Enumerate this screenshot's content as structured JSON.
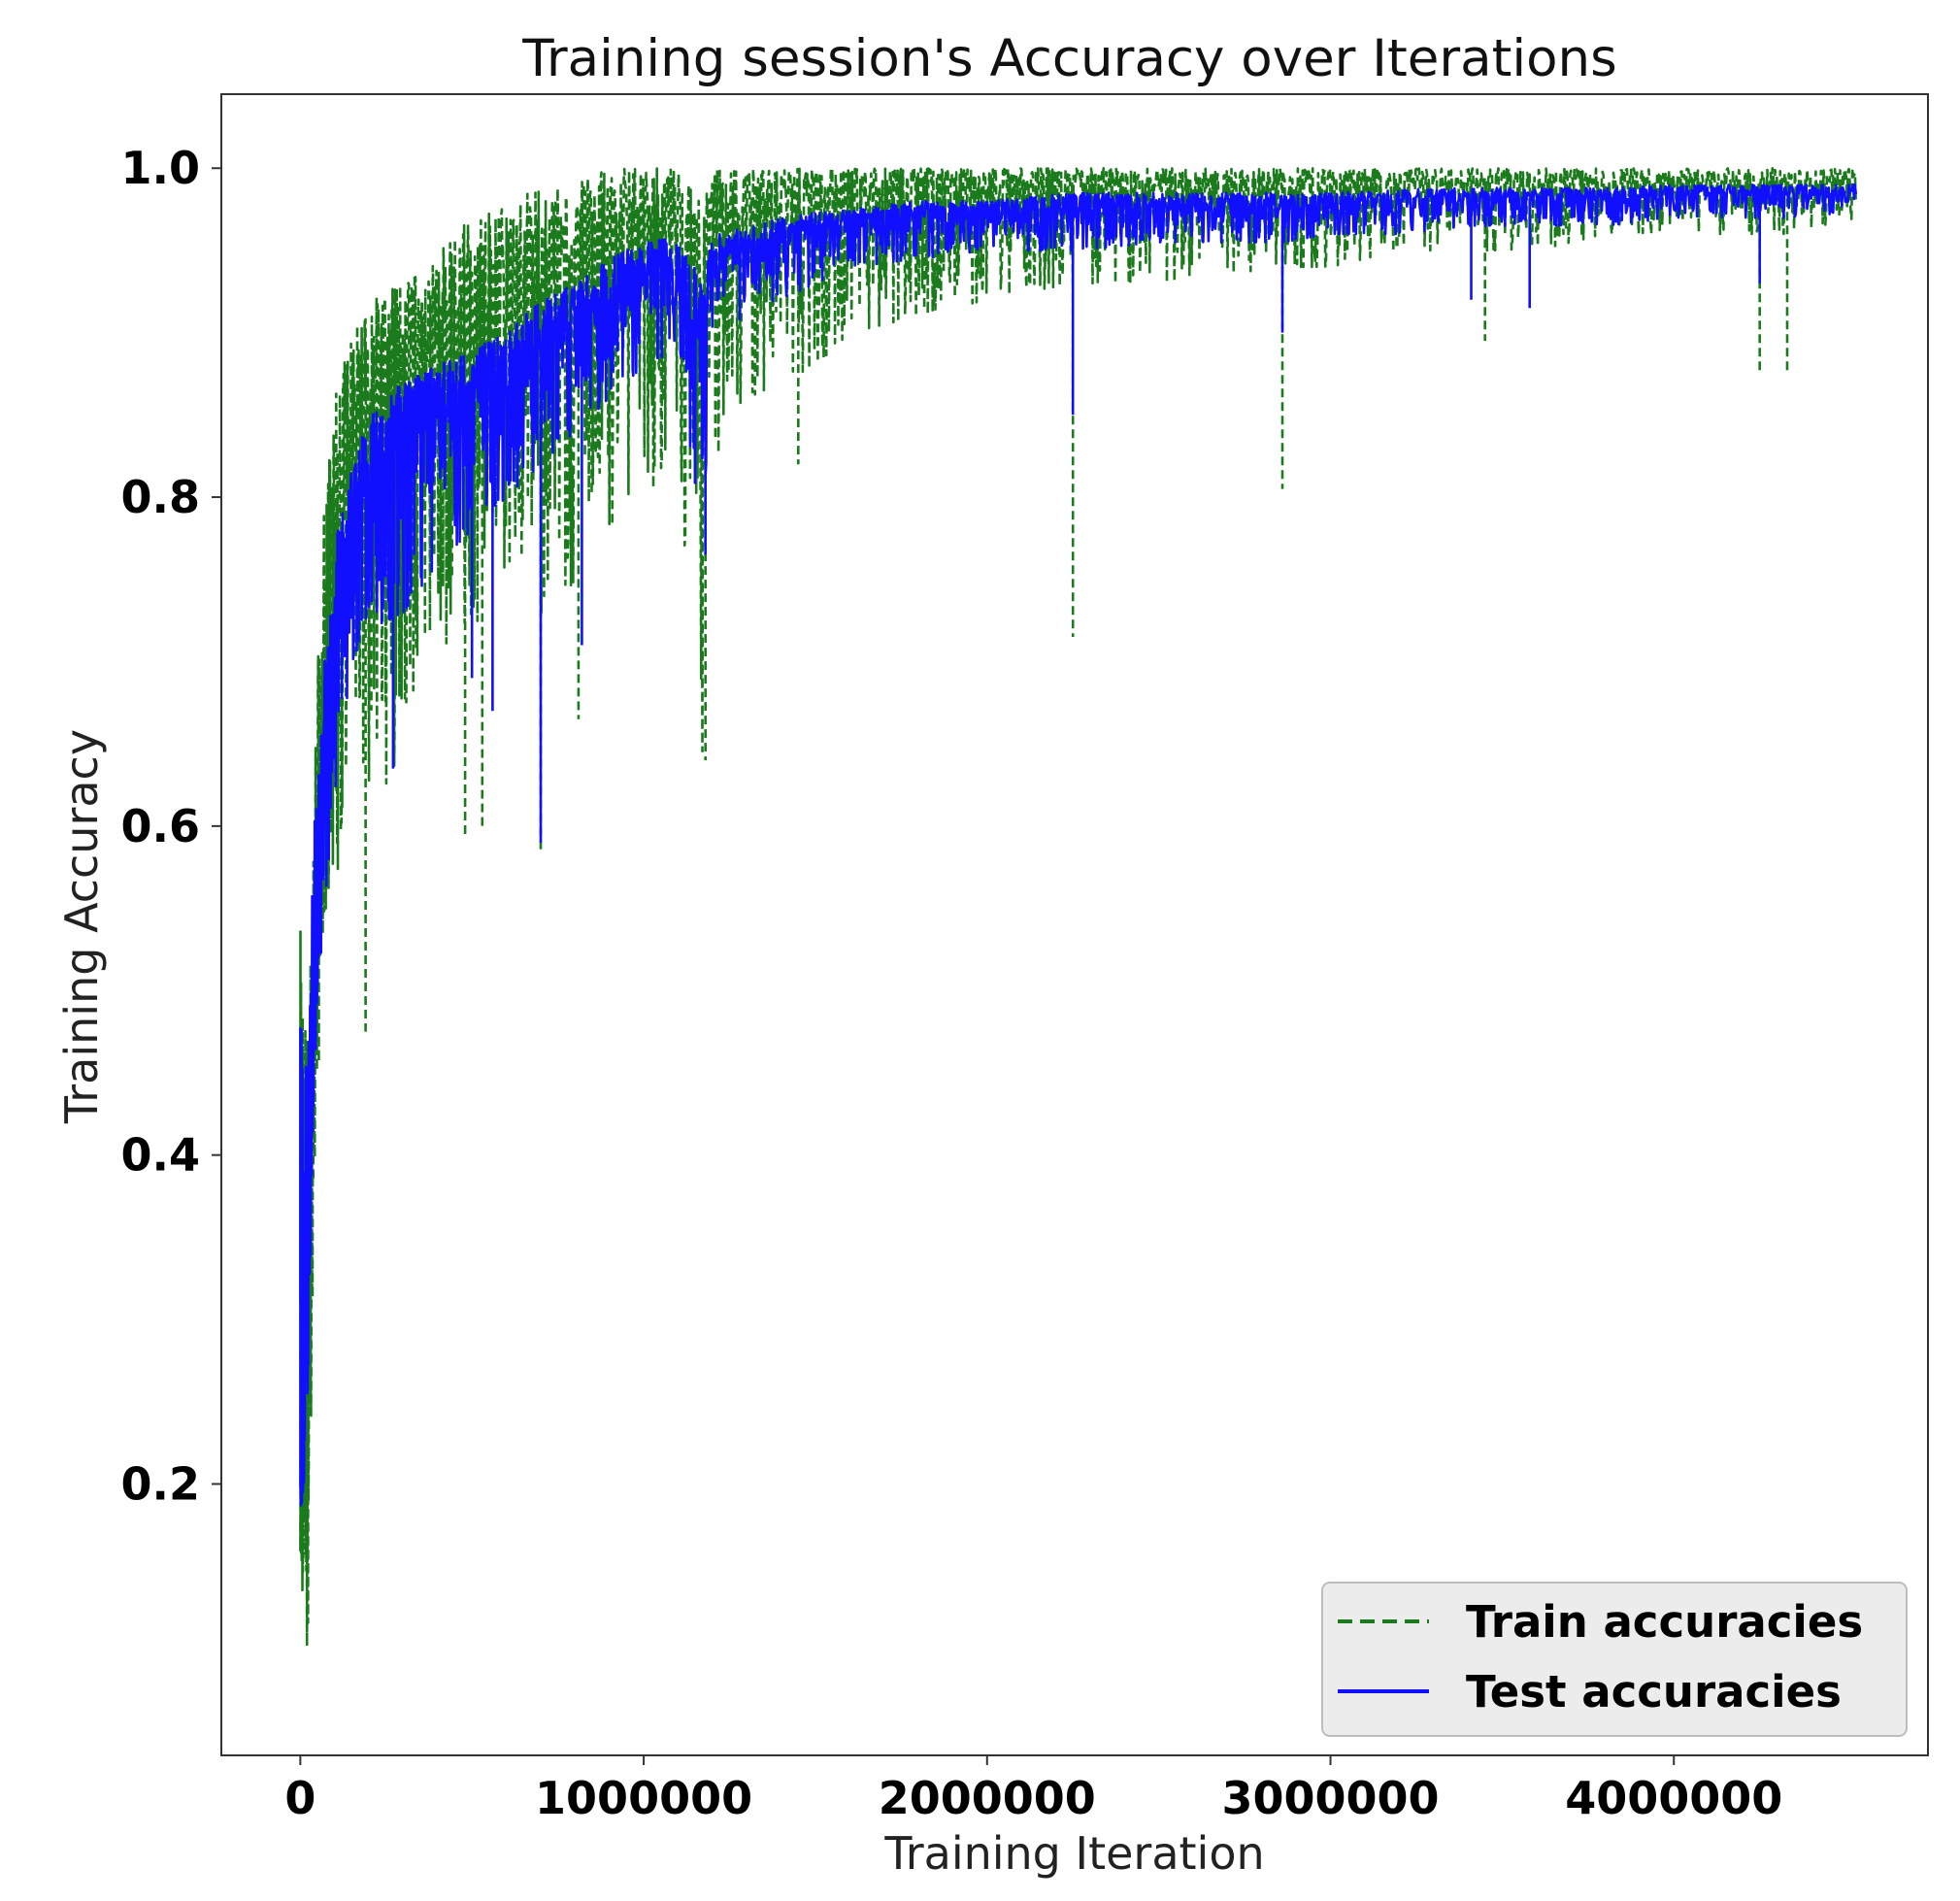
{
  "chart_data": {
    "type": "line",
    "title": "Training session's Accuracy over Iterations",
    "xlabel": "Training Iteration",
    "ylabel": "Training Accuracy",
    "xlim": [
      -230000,
      4740000
    ],
    "ylim": [
      0.035,
      1.045
    ],
    "xticks": [
      0,
      1000000,
      2000000,
      3000000,
      4000000
    ],
    "xtick_labels": [
      "0",
      "1000000",
      "2000000",
      "3000000",
      "4000000"
    ],
    "yticks": [
      0.2,
      0.4,
      0.6,
      0.8,
      1.0
    ],
    "ytick_labels": [
      "0.2",
      "0.4",
      "0.6",
      "0.8",
      "1.0"
    ],
    "grid": false,
    "legend_position": "lower-right",
    "series": [
      {
        "name": "Train accuracies",
        "color": "#1b7a1b",
        "style": "dashed",
        "x": [
          0,
          20000,
          40000,
          70000,
          100000,
          150000,
          200000,
          300000,
          400000,
          500000,
          600000,
          700000,
          800000,
          900000,
          1000000,
          1100000,
          1170000,
          1200000,
          1300000,
          1400000,
          1500000,
          1600000,
          1800000,
          2000000,
          2250000,
          2500000,
          2860000,
          3000000,
          3200000,
          3400000,
          3600000,
          3800000,
          4000000,
          4200000,
          4400000,
          4530000
        ],
        "values": [
          0.18,
          0.22,
          0.43,
          0.68,
          0.76,
          0.82,
          0.86,
          0.88,
          0.89,
          0.9,
          0.91,
          0.93,
          0.93,
          0.95,
          0.96,
          0.965,
          0.9,
          0.97,
          0.975,
          0.98,
          0.98,
          0.985,
          0.985,
          0.99,
          0.99,
          0.99,
          0.99,
          0.99,
          0.99,
          0.99,
          0.99,
          0.99,
          0.99,
          0.99,
          0.99,
          0.99
        ],
        "upper": [
          0.57,
          0.5,
          0.64,
          0.8,
          0.86,
          0.9,
          0.92,
          0.93,
          0.95,
          0.97,
          0.98,
          0.99,
          0.99,
          1.0,
          1.0,
          1.0,
          0.98,
          1.0,
          1.0,
          1.0,
          1.0,
          1.0,
          1.0,
          1.0,
          1.0,
          1.0,
          1.0,
          1.0,
          1.0,
          1.0,
          1.0,
          1.0,
          1.0,
          1.0,
          1.0,
          1.0
        ],
        "lower": [
          0.16,
          0.08,
          0.37,
          0.55,
          0.55,
          0.68,
          0.6,
          0.65,
          0.7,
          0.72,
          0.75,
          0.72,
          0.75,
          0.78,
          0.8,
          0.82,
          0.64,
          0.82,
          0.86,
          0.87,
          0.88,
          0.9,
          0.91,
          0.92,
          0.93,
          0.93,
          0.94,
          0.94,
          0.95,
          0.95,
          0.95,
          0.96,
          0.96,
          0.96,
          0.96,
          0.97
        ],
        "dips": [
          [
            190000,
            0.475
          ],
          [
            480000,
            0.595
          ],
          [
            530000,
            0.6
          ],
          [
            700000,
            0.585
          ],
          [
            810000,
            0.665
          ],
          [
            1180000,
            0.64
          ],
          [
            1450000,
            0.82
          ],
          [
            2250000,
            0.715
          ],
          [
            2860000,
            0.805
          ],
          [
            3450000,
            0.895
          ],
          [
            4250000,
            0.875
          ],
          [
            4330000,
            0.875
          ]
        ]
      },
      {
        "name": "Test accuracies",
        "color": "#1010ff",
        "style": "solid",
        "x": [
          0,
          20000,
          40000,
          70000,
          100000,
          150000,
          200000,
          300000,
          400000,
          500000,
          600000,
          700000,
          800000,
          900000,
          1000000,
          1100000,
          1170000,
          1200000,
          1300000,
          1400000,
          1500000,
          1600000,
          1800000,
          2000000,
          2250000,
          2500000,
          2860000,
          3000000,
          3200000,
          3400000,
          3600000,
          3800000,
          4000000,
          4200000,
          4400000,
          4530000
        ],
        "values": [
          0.2,
          0.3,
          0.5,
          0.63,
          0.7,
          0.78,
          0.81,
          0.83,
          0.85,
          0.86,
          0.87,
          0.89,
          0.91,
          0.92,
          0.93,
          0.94,
          0.89,
          0.94,
          0.95,
          0.955,
          0.96,
          0.965,
          0.97,
          0.975,
          0.975,
          0.975,
          0.978,
          0.98,
          0.98,
          0.98,
          0.982,
          0.982,
          0.984,
          0.985,
          0.986,
          0.986
        ],
        "upper": [
          0.49,
          0.45,
          0.6,
          0.7,
          0.77,
          0.82,
          0.85,
          0.87,
          0.88,
          0.89,
          0.9,
          0.92,
          0.93,
          0.945,
          0.955,
          0.96,
          0.93,
          0.96,
          0.965,
          0.97,
          0.975,
          0.975,
          0.98,
          0.98,
          0.985,
          0.985,
          0.985,
          0.985,
          0.987,
          0.988,
          0.988,
          0.988,
          0.99,
          0.99,
          0.99,
          0.99
        ],
        "lower": [
          0.18,
          0.22,
          0.45,
          0.55,
          0.62,
          0.7,
          0.72,
          0.73,
          0.76,
          0.78,
          0.8,
          0.82,
          0.84,
          0.86,
          0.88,
          0.89,
          0.77,
          0.9,
          0.91,
          0.92,
          0.93,
          0.94,
          0.945,
          0.95,
          0.95,
          0.955,
          0.955,
          0.96,
          0.96,
          0.965,
          0.965,
          0.965,
          0.97,
          0.97,
          0.97,
          0.975
        ],
        "dips": [
          [
            270000,
            0.635
          ],
          [
            500000,
            0.69
          ],
          [
            560000,
            0.67
          ],
          [
            700000,
            0.59
          ],
          [
            820000,
            0.71
          ],
          [
            1180000,
            0.765
          ],
          [
            2250000,
            0.85
          ],
          [
            2860000,
            0.9
          ],
          [
            3410000,
            0.92
          ],
          [
            3580000,
            0.915
          ],
          [
            4250000,
            0.93
          ]
        ]
      }
    ]
  }
}
